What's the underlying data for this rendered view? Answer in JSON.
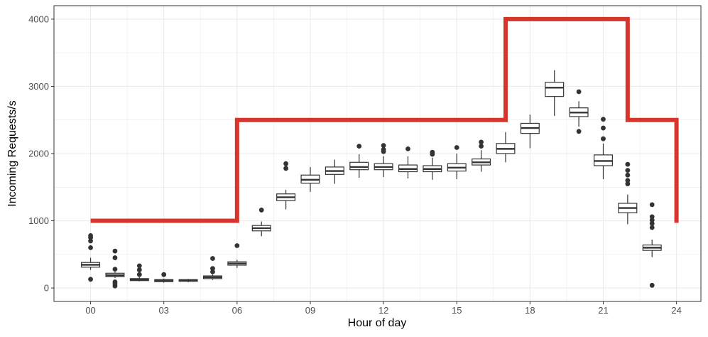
{
  "chart_data": {
    "type": "boxplot",
    "xlabel": "Hour of day",
    "ylabel": "Incoming Requests/s",
    "xlim": [
      -1.5,
      25
    ],
    "ylim": [
      -200,
      4200
    ],
    "x_ticks": [
      0,
      3,
      6,
      9,
      12,
      15,
      18,
      21,
      24
    ],
    "x_tick_labels": [
      "00",
      "03",
      "06",
      "09",
      "12",
      "15",
      "18",
      "21",
      "24"
    ],
    "y_ticks": [
      0,
      1000,
      2000,
      3000,
      4000
    ],
    "y_tick_labels": [
      "0",
      "1000",
      "2000",
      "3000",
      "4000"
    ],
    "grid": true,
    "colors": {
      "box": "#333333",
      "capacity_line": "#d7352b",
      "grid": "#ebebeb",
      "border": "#333333"
    },
    "boxes": [
      {
        "hour": 0,
        "min": 270,
        "q1": 310,
        "median": 345,
        "q3": 380,
        "max": 450,
        "outliers": [
          130,
          600,
          700,
          750,
          780
        ]
      },
      {
        "hour": 1,
        "min": 150,
        "q1": 170,
        "median": 190,
        "q3": 220,
        "max": 240,
        "outliers": [
          30,
          60,
          90,
          280,
          450,
          550
        ]
      },
      {
        "hour": 2,
        "min": 100,
        "q1": 110,
        "median": 125,
        "q3": 140,
        "max": 160,
        "outliers": [
          200,
          270,
          330
        ]
      },
      {
        "hour": 3,
        "min": 80,
        "q1": 95,
        "median": 110,
        "q3": 125,
        "max": 140,
        "outliers": [
          200
        ]
      },
      {
        "hour": 4,
        "min": 85,
        "q1": 100,
        "median": 112,
        "q3": 125,
        "max": 135,
        "outliers": []
      },
      {
        "hour": 5,
        "min": 120,
        "q1": 140,
        "median": 160,
        "q3": 180,
        "max": 200,
        "outliers": [
          240,
          290,
          440
        ]
      },
      {
        "hour": 6,
        "min": 300,
        "q1": 340,
        "median": 365,
        "q3": 390,
        "max": 420,
        "outliers": [
          630
        ]
      },
      {
        "hour": 7,
        "min": 770,
        "q1": 850,
        "median": 890,
        "q3": 930,
        "max": 990,
        "outliers": [
          1160
        ]
      },
      {
        "hour": 8,
        "min": 1170,
        "q1": 1300,
        "median": 1350,
        "q3": 1400,
        "max": 1460,
        "outliers": [
          1780,
          1850
        ]
      },
      {
        "hour": 9,
        "min": 1430,
        "q1": 1560,
        "median": 1610,
        "q3": 1680,
        "max": 1800,
        "outliers": []
      },
      {
        "hour": 10,
        "min": 1550,
        "q1": 1690,
        "median": 1740,
        "q3": 1800,
        "max": 1910,
        "outliers": []
      },
      {
        "hour": 11,
        "min": 1640,
        "q1": 1760,
        "median": 1800,
        "q3": 1870,
        "max": 1990,
        "outliers": [
          2110
        ]
      },
      {
        "hour": 12,
        "min": 1650,
        "q1": 1760,
        "median": 1800,
        "q3": 1850,
        "max": 1960,
        "outliers": [
          2030,
          2060,
          2120
        ]
      },
      {
        "hour": 13,
        "min": 1630,
        "q1": 1730,
        "median": 1770,
        "q3": 1830,
        "max": 1960,
        "outliers": [
          2070
        ]
      },
      {
        "hour": 14,
        "min": 1610,
        "q1": 1730,
        "median": 1770,
        "q3": 1820,
        "max": 1940,
        "outliers": [
          1990,
          2020
        ]
      },
      {
        "hour": 15,
        "min": 1620,
        "q1": 1740,
        "median": 1790,
        "q3": 1850,
        "max": 2000,
        "outliers": [
          2090
        ]
      },
      {
        "hour": 16,
        "min": 1730,
        "q1": 1830,
        "median": 1870,
        "q3": 1920,
        "max": 2050,
        "outliers": [
          2110,
          2170
        ]
      },
      {
        "hour": 17,
        "min": 1870,
        "q1": 2000,
        "median": 2070,
        "q3": 2150,
        "max": 2320,
        "outliers": []
      },
      {
        "hour": 18,
        "min": 2080,
        "q1": 2300,
        "median": 2380,
        "q3": 2450,
        "max": 2580,
        "outliers": []
      },
      {
        "hour": 19,
        "min": 2560,
        "q1": 2850,
        "median": 2980,
        "q3": 3060,
        "max": 3240,
        "outliers": []
      },
      {
        "hour": 20,
        "min": 2400,
        "q1": 2550,
        "median": 2610,
        "q3": 2680,
        "max": 2780,
        "outliers": [
          2330,
          2920
        ]
      },
      {
        "hour": 21,
        "min": 1620,
        "q1": 1820,
        "median": 1890,
        "q3": 1980,
        "max": 2150,
        "outliers": [
          2220,
          2380,
          2510
        ]
      },
      {
        "hour": 22,
        "min": 950,
        "q1": 1120,
        "median": 1190,
        "q3": 1260,
        "max": 1390,
        "outliers": [
          1550,
          1600,
          1680,
          1750,
          1840
        ]
      },
      {
        "hour": 23,
        "min": 460,
        "q1": 560,
        "median": 600,
        "q3": 640,
        "max": 720,
        "outliers": [
          40,
          900,
          960,
          1010,
          1060,
          1240
        ]
      }
    ],
    "capacity_line": {
      "x": [
        0,
        6,
        6,
        17,
        17,
        22,
        22,
        24,
        24
      ],
      "y": [
        1000,
        1000,
        2500,
        2500,
        4000,
        4000,
        2500,
        2500,
        970
      ]
    }
  }
}
